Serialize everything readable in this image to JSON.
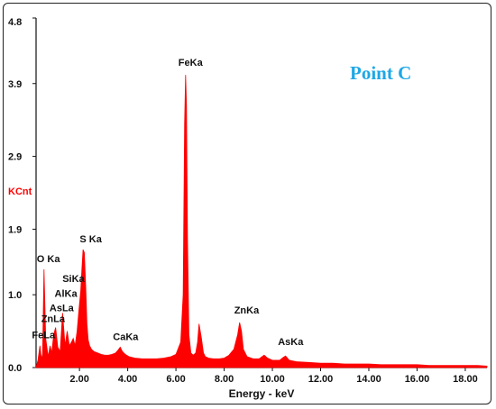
{
  "chart_data": {
    "type": "line",
    "title": "",
    "annotation": "Point C",
    "xlabel": "Energy - keV",
    "ylabel": "KCnt",
    "xlim": [
      0.2,
      18.9
    ],
    "ylim": [
      0,
      4.8
    ],
    "x_ticks": [
      2,
      4,
      6,
      8,
      10,
      12,
      14,
      16,
      18
    ],
    "x_tick_labels": [
      "2.00",
      "4.00",
      "6.00",
      "8.00",
      "10.00",
      "12.00",
      "14.00",
      "16.00",
      "18.00"
    ],
    "y_ticks": [
      0.0,
      1.0,
      1.9,
      2.9,
      3.9,
      4.8
    ],
    "y_tick_labels": [
      "0.0",
      "1.0",
      "1.9",
      "2.9",
      "3.9",
      "4.8"
    ],
    "grid": false,
    "legend": "none",
    "series": [
      {
        "x": [
          0.2,
          0.28,
          0.36,
          0.42,
          0.47,
          0.53,
          0.6,
          0.7,
          0.78,
          0.85,
          0.93,
          1.01,
          1.1,
          1.2,
          1.3,
          1.4,
          1.49,
          1.58,
          1.67,
          1.74,
          1.82,
          1.9,
          1.98,
          2.05,
          2.1,
          2.15,
          2.2,
          2.26,
          2.31,
          2.36,
          2.42,
          2.5,
          2.6,
          2.75,
          2.9,
          3.05,
          3.2,
          3.35,
          3.5,
          3.6,
          3.69,
          3.78,
          3.9,
          4.05,
          4.3,
          4.6,
          4.9,
          5.2,
          5.5,
          5.8,
          6.0,
          6.2,
          6.3,
          6.36,
          6.4,
          6.44,
          6.48,
          6.54,
          6.62,
          6.72,
          6.82,
          6.9,
          6.96,
          7.06,
          7.14,
          7.22,
          7.35,
          7.55,
          7.8,
          8.0,
          8.2,
          8.4,
          8.56,
          8.64,
          8.72,
          8.8,
          8.95,
          9.2,
          9.45,
          9.57,
          9.66,
          9.8,
          10.0,
          10.3,
          10.45,
          10.55,
          10.7,
          11.0,
          11.5,
          12.0,
          12.5,
          13.0,
          13.5,
          14.0,
          14.5,
          15.0,
          15.5,
          16.0,
          16.5,
          17.0,
          17.5,
          18.0,
          18.5,
          18.9
        ],
        "y": [
          0.0,
          0.1,
          0.3,
          0.12,
          0.18,
          1.35,
          0.4,
          0.15,
          0.3,
          0.2,
          0.45,
          0.55,
          0.28,
          0.22,
          0.75,
          0.3,
          0.5,
          0.3,
          0.35,
          0.4,
          0.3,
          0.5,
          0.8,
          1.05,
          1.35,
          1.62,
          1.58,
          1.1,
          0.6,
          0.38,
          0.3,
          0.25,
          0.22,
          0.2,
          0.18,
          0.17,
          0.17,
          0.18,
          0.2,
          0.24,
          0.28,
          0.22,
          0.18,
          0.15,
          0.13,
          0.12,
          0.12,
          0.12,
          0.13,
          0.15,
          0.18,
          0.35,
          1.0,
          3.35,
          4.02,
          3.6,
          1.8,
          0.45,
          0.2,
          0.17,
          0.2,
          0.35,
          0.6,
          0.4,
          0.2,
          0.15,
          0.13,
          0.12,
          0.12,
          0.13,
          0.17,
          0.25,
          0.45,
          0.62,
          0.5,
          0.25,
          0.15,
          0.12,
          0.12,
          0.15,
          0.17,
          0.13,
          0.1,
          0.1,
          0.14,
          0.16,
          0.1,
          0.08,
          0.07,
          0.06,
          0.06,
          0.05,
          0.05,
          0.05,
          0.04,
          0.04,
          0.04,
          0.04,
          0.03,
          0.03,
          0.03,
          0.03,
          0.03,
          0.02
        ]
      }
    ],
    "peak_labels": [
      {
        "text": "FeKa",
        "x": 6.4,
        "y": 4.02
      },
      {
        "text": "S Ka",
        "x": 2.31,
        "y": 1.62
      },
      {
        "text": "O Ka",
        "x": 0.53,
        "y": 1.35
      },
      {
        "text": "SiKa",
        "x": 1.74,
        "y": 1.1
      },
      {
        "text": "AlKa",
        "x": 1.49,
        "y": 0.9
      },
      {
        "text": "AsLa",
        "x": 1.28,
        "y": 0.7
      },
      {
        "text": "ZnLa",
        "x": 1.01,
        "y": 0.55
      },
      {
        "text": "FeLa",
        "x": 0.7,
        "y": 0.35
      },
      {
        "text": "CaKa",
        "x": 3.69,
        "y": 0.28
      },
      {
        "text": "ZnKa",
        "x": 8.64,
        "y": 0.62
      },
      {
        "text": "AsKa",
        "x": 10.53,
        "y": 0.16
      }
    ],
    "colors": {
      "spectrum": "#ff0000",
      "ylabel": "#ff0000",
      "annotation": "#1ea7e6",
      "axis": "#111111"
    }
  }
}
